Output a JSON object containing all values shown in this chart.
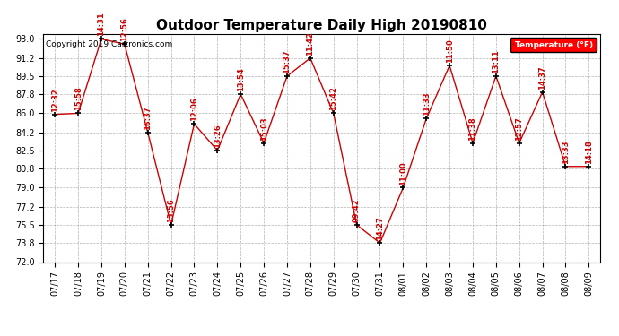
{
  "title": "Outdoor Temperature Daily High 20190810",
  "copyright": "Copyright 2019 Cartronics.com",
  "legend_label": "Temperature (°F)",
  "ylim": [
    72.0,
    93.5
  ],
  "yticks": [
    72.0,
    73.8,
    75.5,
    77.2,
    79.0,
    80.8,
    82.5,
    84.2,
    86.0,
    87.8,
    89.5,
    91.2,
    93.0
  ],
  "dates": [
    "07/17",
    "07/18",
    "07/19",
    "07/20",
    "07/21",
    "07/22",
    "07/23",
    "07/24",
    "07/25",
    "07/26",
    "07/27",
    "07/28",
    "07/29",
    "07/30",
    "07/31",
    "08/01",
    "08/02",
    "08/03",
    "08/04",
    "08/05",
    "08/06",
    "08/07",
    "08/08",
    "08/09"
  ],
  "values": [
    85.9,
    86.0,
    93.0,
    92.5,
    84.2,
    75.5,
    85.0,
    82.5,
    87.8,
    83.2,
    89.5,
    91.2,
    86.0,
    75.5,
    73.8,
    79.0,
    85.5,
    90.5,
    83.2,
    89.5,
    83.2,
    88.0,
    81.0,
    81.0
  ],
  "time_labels": [
    "12:32",
    "15:58",
    "14:31",
    "12:56",
    "16:37",
    "13:56",
    "12:06",
    "13:26",
    "13:54",
    "15:03",
    "15:37",
    "11:42",
    "15:42",
    "09:42",
    "14:27",
    "11:00",
    "11:33",
    "11:50",
    "11:38",
    "13:11",
    "12:57",
    "14:37",
    "13:33",
    "14:18"
  ],
  "line_color": "#cc0000",
  "marker_color": "#000000",
  "bg_color": "#ffffff",
  "grid_color": "#aaaaaa",
  "title_fontsize": 11,
  "copyright_fontsize": 6.5,
  "label_fontsize": 6,
  "tick_fontsize": 7
}
